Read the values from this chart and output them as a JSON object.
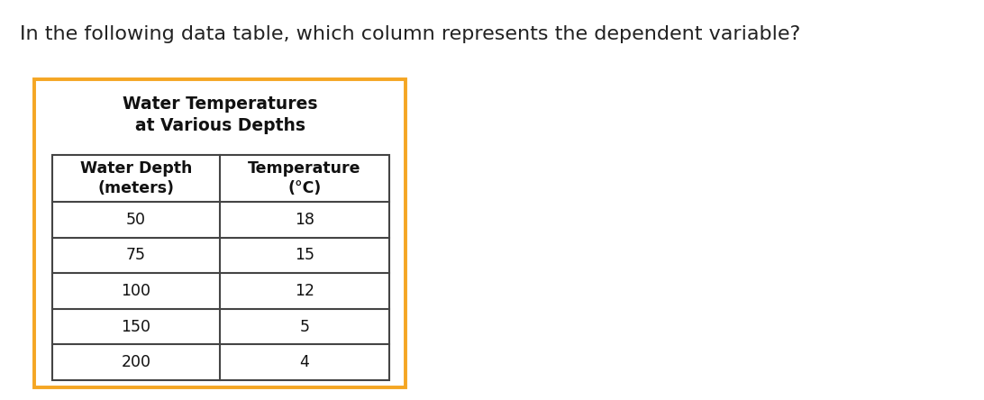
{
  "question_text": "In the following data table, which column represents the dependent variable?",
  "table_title_line1": "Water Temperatures",
  "table_title_line2": "at Various Depths",
  "col_headers_line1": [
    "Water Depth",
    "Temperature"
  ],
  "col_headers_line2": [
    "(meters)",
    "(°C)"
  ],
  "rows": [
    [
      "50",
      "18"
    ],
    [
      "75",
      "15"
    ],
    [
      "100",
      "12"
    ],
    [
      "150",
      "5"
    ],
    [
      "200",
      "4"
    ]
  ],
  "outer_border_color": "#F5A623",
  "inner_border_color": "#444444",
  "background_color": "#ffffff",
  "question_fontsize": 16,
  "title_fontsize": 13.5,
  "header_fontsize": 12.5,
  "data_fontsize": 12.5,
  "outer_border_lw": 2.8,
  "inner_border_lw": 1.5
}
